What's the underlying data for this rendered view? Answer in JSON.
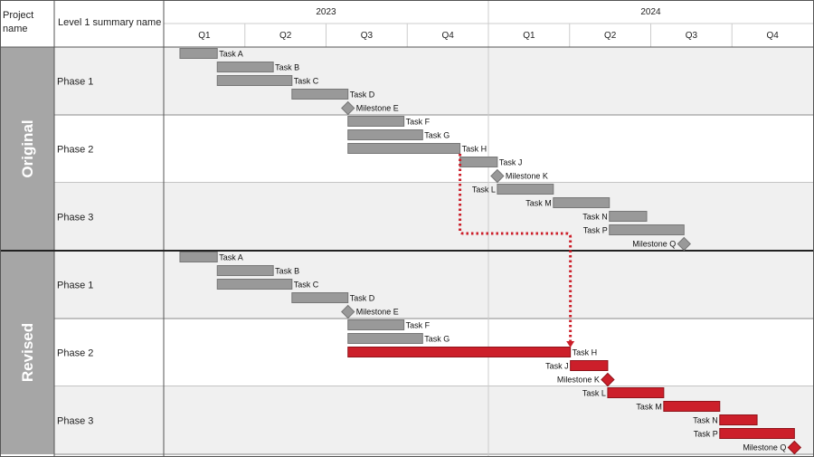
{
  "header": {
    "col_project": [
      "Project",
      "name"
    ],
    "col_summary": "Level 1 summary name",
    "years": [
      {
        "label": "2023",
        "start": 0,
        "end": 4
      },
      {
        "label": "2024",
        "start": 4,
        "end": 8
      }
    ],
    "quarters": [
      "Q1",
      "Q2",
      "Q3",
      "Q4",
      "Q1",
      "Q2",
      "Q3",
      "Q4"
    ]
  },
  "colors": {
    "grey_fill": "#999999",
    "grey_stroke": "#777777",
    "red_fill": "#cc1f2a",
    "red_stroke": "#8f1219",
    "band_shade": "#f0f0f0",
    "project_band": "#a6a6a6",
    "connector": "#cc1f2a"
  },
  "projects": [
    {
      "name": "Original",
      "phases": [
        {
          "name": "Phase 1",
          "shaded": true,
          "items": [
            {
              "label": "Task A",
              "type": "task",
              "start": 0.2,
              "end": 0.66,
              "color": "grey",
              "label_side": "right"
            },
            {
              "label": "Task B",
              "type": "task",
              "start": 0.66,
              "end": 1.35,
              "color": "grey",
              "label_side": "right"
            },
            {
              "label": "Task C",
              "type": "task",
              "start": 0.66,
              "end": 1.58,
              "color": "grey",
              "label_side": "right"
            },
            {
              "label": "Task D",
              "type": "task",
              "start": 1.58,
              "end": 2.27,
              "color": "grey",
              "label_side": "right"
            },
            {
              "label": "Milestone E",
              "type": "milestone",
              "at": 2.27,
              "color": "grey",
              "label_side": "right"
            }
          ]
        },
        {
          "name": "Phase 2",
          "shaded": false,
          "items": [
            {
              "label": "Task F",
              "type": "task",
              "start": 2.27,
              "end": 2.96,
              "color": "grey",
              "label_side": "right"
            },
            {
              "label": "Task G",
              "type": "task",
              "start": 2.27,
              "end": 3.19,
              "color": "grey",
              "label_side": "right"
            },
            {
              "label": "Task H",
              "type": "task",
              "start": 2.27,
              "end": 3.65,
              "color": "grey",
              "label_side": "right"
            },
            {
              "label": "Task J",
              "type": "task",
              "start": 3.65,
              "end": 4.11,
              "color": "grey",
              "label_side": "right"
            },
            {
              "label": "Milestone K",
              "type": "milestone",
              "at": 4.11,
              "color": "grey",
              "label_side": "right"
            }
          ]
        },
        {
          "name": "Phase 3",
          "shaded": true,
          "items": [
            {
              "label": "Task L",
              "type": "task",
              "start": 4.11,
              "end": 4.8,
              "color": "grey",
              "label_side": "left"
            },
            {
              "label": "Task M",
              "type": "task",
              "start": 4.8,
              "end": 5.49,
              "color": "grey",
              "label_side": "left"
            },
            {
              "label": "Task N",
              "type": "task",
              "start": 5.49,
              "end": 5.95,
              "color": "grey",
              "label_side": "left"
            },
            {
              "label": "Task P",
              "type": "task",
              "start": 5.49,
              "end": 6.41,
              "color": "grey",
              "label_side": "left"
            },
            {
              "label": "Milestone Q",
              "type": "milestone",
              "at": 6.41,
              "color": "grey",
              "label_side": "left"
            }
          ]
        }
      ]
    },
    {
      "name": "Revised",
      "phases": [
        {
          "name": "Phase 1",
          "shaded": true,
          "items": [
            {
              "label": "Task A",
              "type": "task",
              "start": 0.2,
              "end": 0.66,
              "color": "grey",
              "label_side": "right"
            },
            {
              "label": "Task B",
              "type": "task",
              "start": 0.66,
              "end": 1.35,
              "color": "grey",
              "label_side": "right"
            },
            {
              "label": "Task C",
              "type": "task",
              "start": 0.66,
              "end": 1.58,
              "color": "grey",
              "label_side": "right"
            },
            {
              "label": "Task D",
              "type": "task",
              "start": 1.58,
              "end": 2.27,
              "color": "grey",
              "label_side": "right"
            },
            {
              "label": "Milestone E",
              "type": "milestone",
              "at": 2.27,
              "color": "grey",
              "label_side": "right"
            }
          ]
        },
        {
          "name": "Phase 2",
          "shaded": false,
          "items": [
            {
              "label": "Task F",
              "type": "task",
              "start": 2.27,
              "end": 2.96,
              "color": "grey",
              "label_side": "right"
            },
            {
              "label": "Task G",
              "type": "task",
              "start": 2.27,
              "end": 3.19,
              "color": "grey",
              "label_side": "right"
            },
            {
              "label": "Task H",
              "type": "task",
              "start": 2.27,
              "end": 5.01,
              "color": "red",
              "label_side": "right"
            },
            {
              "label": "Task J",
              "type": "task",
              "start": 5.01,
              "end": 5.47,
              "color": "red",
              "label_side": "left"
            },
            {
              "label": "Milestone K",
              "type": "milestone",
              "at": 5.47,
              "color": "red",
              "label_side": "left"
            }
          ]
        },
        {
          "name": "Phase 3",
          "shaded": true,
          "items": [
            {
              "label": "Task L",
              "type": "task",
              "start": 5.47,
              "end": 6.16,
              "color": "red",
              "label_side": "left"
            },
            {
              "label": "Task M",
              "type": "task",
              "start": 6.16,
              "end": 6.85,
              "color": "red",
              "label_side": "left"
            },
            {
              "label": "Task N",
              "type": "task",
              "start": 6.85,
              "end": 7.31,
              "color": "red",
              "label_side": "left"
            },
            {
              "label": "Task P",
              "type": "task",
              "start": 6.85,
              "end": 7.77,
              "color": "red",
              "label_side": "left"
            },
            {
              "label": "Milestone Q",
              "type": "milestone",
              "at": 7.77,
              "color": "red",
              "label_side": "left"
            }
          ]
        }
      ]
    }
  ],
  "connector": {
    "from": {
      "project": 0,
      "phase": 1,
      "item": 2
    },
    "to": {
      "project": 1,
      "phase": 1,
      "item": 2
    },
    "style": "dotted-arrow"
  }
}
